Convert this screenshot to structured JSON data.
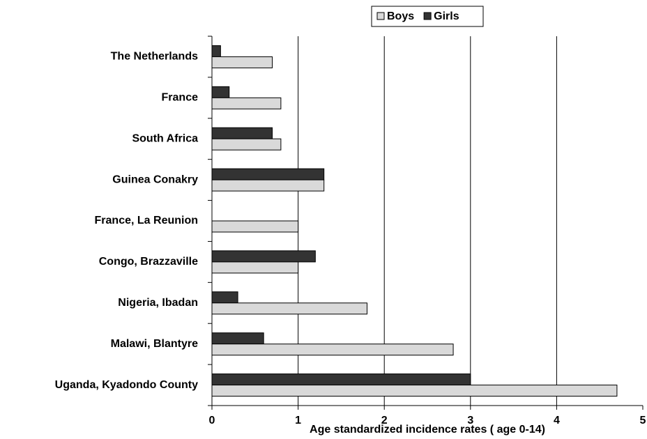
{
  "chart_data": {
    "type": "hbar",
    "xlabel": "Age standardized incidence rates  ( age 0-14)",
    "categories": [
      "The Netherlands",
      "France",
      "South Africa",
      "Guinea Conakry",
      "France, La Reunion",
      "Congo, Brazzaville",
      "Nigeria, Ibadan",
      "Malawi, Blantyre",
      "Uganda, Kyadondo County"
    ],
    "series": [
      {
        "name": "Boys",
        "color": "#d9d9d9",
        "values": [
          0.7,
          0.8,
          0.8,
          1.3,
          1.0,
          1.0,
          1.8,
          2.8,
          4.7
        ]
      },
      {
        "name": "Girls",
        "color": "#333333",
        "values": [
          0.1,
          0.2,
          0.7,
          1.3,
          0,
          1.2,
          0.3,
          0.6,
          3.0
        ]
      }
    ],
    "xlim": [
      0,
      5
    ],
    "xticks": [
      0,
      1,
      2,
      3,
      4,
      5
    ],
    "grid": true,
    "legend": "top"
  }
}
